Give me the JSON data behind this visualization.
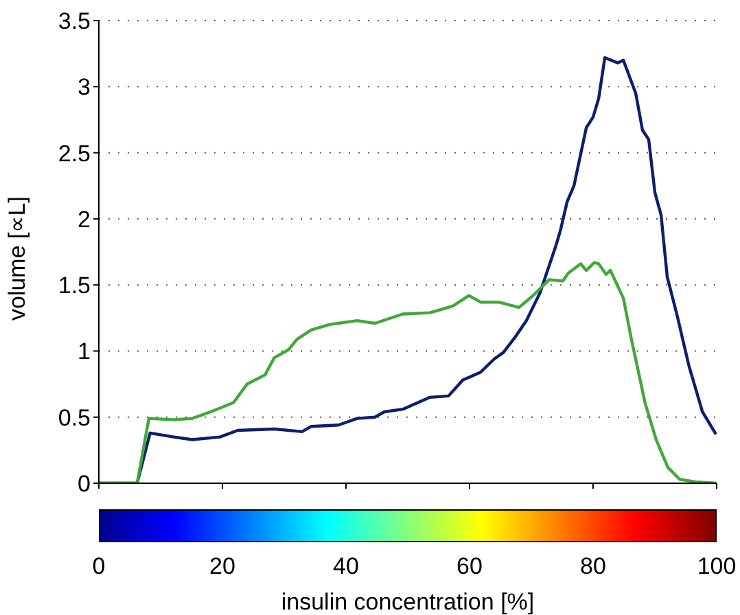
{
  "chart_data": {
    "type": "line",
    "xlabel": "insulin concentration [%]",
    "ylabel": "volume [∝L]",
    "xlim": [
      0,
      100
    ],
    "xticks": [
      0,
      20,
      40,
      60,
      80,
      100
    ],
    "ylim": [
      0,
      3.5
    ],
    "yticks": [
      0,
      0.5,
      1,
      1.5,
      2,
      2.5,
      3,
      3.5
    ],
    "grid": "y",
    "marker": "none",
    "line_style": "solid",
    "series": [
      {
        "color": "#0c1e6e",
        "x": [
          0,
          6.2,
          8.3,
          12.1,
          15.1,
          19.6,
          22.5,
          28.4,
          32.9,
          34.4,
          38.8,
          41.8,
          44.7,
          46.2,
          49.2,
          53.6,
          56.6,
          58.9,
          61.8,
          64,
          65.5,
          67.3,
          69.2,
          71.4,
          74,
          74.7,
          75.8,
          76.9,
          78.9,
          80,
          80.9,
          81.9,
          84,
          84.9,
          86.9,
          88,
          89,
          90,
          91,
          92,
          93.6,
          95.5,
          97.7,
          99.9
        ],
        "values": [
          0,
          0,
          0.38,
          0.35,
          0.33,
          0.35,
          0.4,
          0.41,
          0.39,
          0.43,
          0.44,
          0.49,
          0.5,
          0.54,
          0.56,
          0.65,
          0.66,
          0.78,
          0.84,
          0.94,
          0.99,
          1.1,
          1.23,
          1.44,
          1.8,
          1.91,
          2.13,
          2.25,
          2.69,
          2.77,
          2.91,
          3.22,
          3.18,
          3.2,
          2.95,
          2.67,
          2.6,
          2.2,
          2.03,
          1.56,
          1.27,
          0.89,
          0.54,
          0.37
        ]
      },
      {
        "color": "#43a73c",
        "x": [
          0,
          6.2,
          8.1,
          12.1,
          15.1,
          18.1,
          21.8,
          24,
          26.9,
          28.4,
          30.7,
          32.1,
          34.4,
          37.3,
          41.8,
          44.7,
          49.2,
          53.6,
          57.3,
          59.9,
          61.8,
          64.7,
          68,
          70.3,
          72.9,
          75.1,
          76,
          78,
          78.9,
          80.2,
          80.9,
          82.1,
          82.8,
          84.9,
          86.2,
          88.4,
          90.2,
          92.1,
          94,
          96.6,
          99.9
        ],
        "values": [
          0,
          0,
          0.49,
          0.48,
          0.49,
          0.54,
          0.61,
          0.75,
          0.82,
          0.95,
          1.01,
          1.09,
          1.16,
          1.2,
          1.23,
          1.21,
          1.28,
          1.29,
          1.34,
          1.42,
          1.37,
          1.37,
          1.33,
          1.42,
          1.54,
          1.53,
          1.59,
          1.66,
          1.61,
          1.67,
          1.66,
          1.58,
          1.61,
          1.4,
          1.09,
          0.61,
          0.33,
          0.12,
          0.03,
          0.01,
          0
        ]
      }
    ]
  }
}
